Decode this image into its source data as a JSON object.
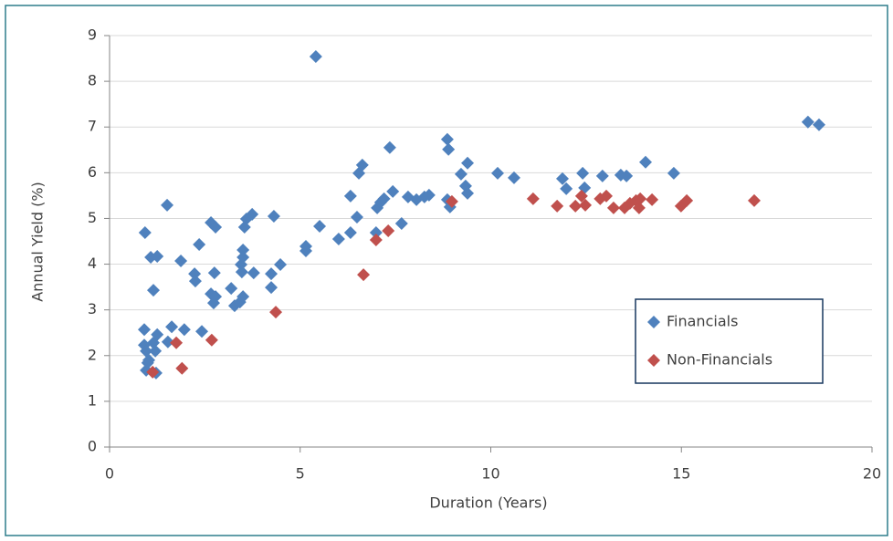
{
  "chart_data": {
    "type": "scatter",
    "xlabel": "Duration (Years)",
    "ylabel": "Annual Yield (%)",
    "xlim": [
      0,
      20
    ],
    "xticks": [
      0,
      5,
      10,
      15,
      20
    ],
    "ylim": [
      0,
      9
    ],
    "yticks": [
      0,
      1,
      2,
      3,
      4,
      5,
      6,
      7,
      8,
      9
    ],
    "grid": true,
    "legend": "right",
    "series": [
      {
        "name": "Financials",
        "color": "#4f81bd",
        "x": [
          0.91,
          0.91,
          0.96,
          1.03,
          0.96,
          1.0,
          0.93,
          1.08,
          1.15,
          1.25,
          1.2,
          1.15,
          1.25,
          1.22,
          1.51,
          1.53,
          1.63,
          1.87,
          1.96,
          2.23,
          2.25,
          2.35,
          2.42,
          2.66,
          2.78,
          2.66,
          2.78,
          2.73,
          2.75,
          3.19,
          3.28,
          3.42,
          3.45,
          3.5,
          3.5,
          3.47,
          3.5,
          3.54,
          3.59,
          3.74,
          3.78,
          4.24,
          4.24,
          4.31,
          4.48,
          5.15,
          5.15,
          5.41,
          5.51,
          6.01,
          6.32,
          6.32,
          6.49,
          6.54,
          6.63,
          6.99,
          7.02,
          7.11,
          7.2,
          7.35,
          7.43,
          7.66,
          7.83,
          8.05,
          8.26,
          8.38,
          8.86,
          8.86,
          8.89,
          8.93,
          9.22,
          9.34,
          9.39,
          9.39,
          10.18,
          10.61,
          11.88,
          11.98,
          12.41,
          12.46,
          12.93,
          13.41,
          13.56,
          14.06,
          14.8,
          18.32,
          18.61
        ],
        "values": [
          2.57,
          2.23,
          2.1,
          1.9,
          1.68,
          1.84,
          4.69,
          4.15,
          3.43,
          4.17,
          2.1,
          2.28,
          2.46,
          1.62,
          5.29,
          2.3,
          2.63,
          4.07,
          2.57,
          3.79,
          3.63,
          4.43,
          2.53,
          4.91,
          4.81,
          3.35,
          3.29,
          3.15,
          3.81,
          3.47,
          3.09,
          3.17,
          3.99,
          4.31,
          4.15,
          3.83,
          3.29,
          4.81,
          4.99,
          5.09,
          3.81,
          3.79,
          3.49,
          5.05,
          3.99,
          4.29,
          4.39,
          8.54,
          4.83,
          4.55,
          5.49,
          4.69,
          5.03,
          5.99,
          6.17,
          4.69,
          5.23,
          5.35,
          5.43,
          6.55,
          5.59,
          4.89,
          5.47,
          5.41,
          5.47,
          5.51,
          5.41,
          6.73,
          6.51,
          5.25,
          5.97,
          5.71,
          5.55,
          6.21,
          5.99,
          5.89,
          5.87,
          5.65,
          5.99,
          5.67,
          5.93,
          5.95,
          5.93,
          6.23,
          5.99,
          7.11,
          7.05
        ]
      },
      {
        "name": "Non-Financials",
        "color": "#c0504d",
        "x": [
          1.13,
          1.75,
          1.9,
          2.68,
          4.36,
          6.66,
          6.99,
          7.31,
          8.98,
          11.11,
          11.74,
          12.22,
          12.38,
          12.48,
          12.87,
          13.03,
          13.22,
          13.51,
          13.65,
          13.81,
          13.89,
          13.92,
          14.23,
          14.99,
          15.14,
          16.91
        ],
        "values": [
          1.64,
          2.28,
          1.72,
          2.34,
          2.95,
          3.77,
          4.53,
          4.73,
          5.37,
          5.43,
          5.27,
          5.27,
          5.49,
          5.29,
          5.43,
          5.49,
          5.23,
          5.23,
          5.33,
          5.39,
          5.23,
          5.43,
          5.41,
          5.27,
          5.39,
          5.39
        ]
      }
    ]
  }
}
